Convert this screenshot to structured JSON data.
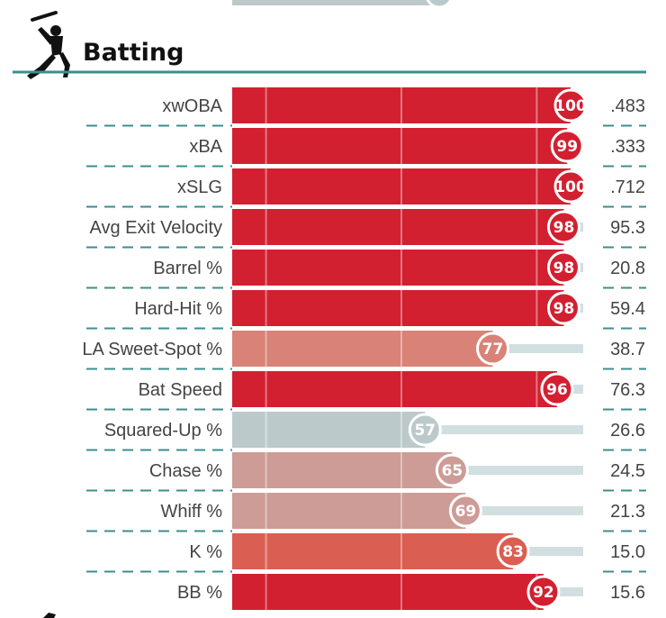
{
  "section": {
    "title": "Batting",
    "icon": "batter-icon"
  },
  "colors": {
    "elite": "#d22030",
    "high": "#db5e52",
    "above_avg": "#d98277",
    "mid": "#cd9c97",
    "average": "#bcc9cb",
    "track": "#d1dfe0",
    "rule": "#3d8e8e"
  },
  "chart_data": {
    "type": "bar",
    "title": "Batting",
    "xlim": [
      0,
      100
    ],
    "rows": [
      {
        "label": "xwOBA",
        "percentile": 100,
        "value": ".483"
      },
      {
        "label": "xBA",
        "percentile": 99,
        "value": ".333"
      },
      {
        "label": "xSLG",
        "percentile": 100,
        "value": ".712"
      },
      {
        "label": "Avg Exit Velocity",
        "percentile": 98,
        "value": "95.3"
      },
      {
        "label": "Barrel %",
        "percentile": 98,
        "value": "20.8"
      },
      {
        "label": "Hard-Hit %",
        "percentile": 98,
        "value": "59.4"
      },
      {
        "label": "LA Sweet-Spot %",
        "percentile": 77,
        "value": "38.7"
      },
      {
        "label": "Bat Speed",
        "percentile": 96,
        "value": "76.3"
      },
      {
        "label": "Squared-Up %",
        "percentile": 57,
        "value": "26.6"
      },
      {
        "label": "Chase %",
        "percentile": 65,
        "value": "24.5"
      },
      {
        "label": "Whiff %",
        "percentile": 69,
        "value": "21.3"
      },
      {
        "label": "K %",
        "percentile": 83,
        "value": "15.0"
      },
      {
        "label": "BB %",
        "percentile": 92,
        "value": "15.6"
      }
    ]
  }
}
